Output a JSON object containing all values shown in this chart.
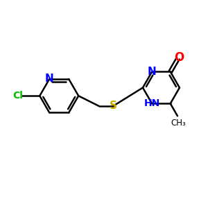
{
  "bg_color": "#ffffff",
  "bond_color": "#000000",
  "N_color": "#0000ff",
  "O_color": "#ff0000",
  "S_color": "#ccaa00",
  "Cl_color": "#00bb00",
  "line_width": 1.8,
  "font_size": 10,
  "figsize": [
    3.0,
    3.0
  ],
  "dpi": 100,
  "xlim": [
    0,
    10
  ],
  "ylim": [
    0,
    10
  ]
}
